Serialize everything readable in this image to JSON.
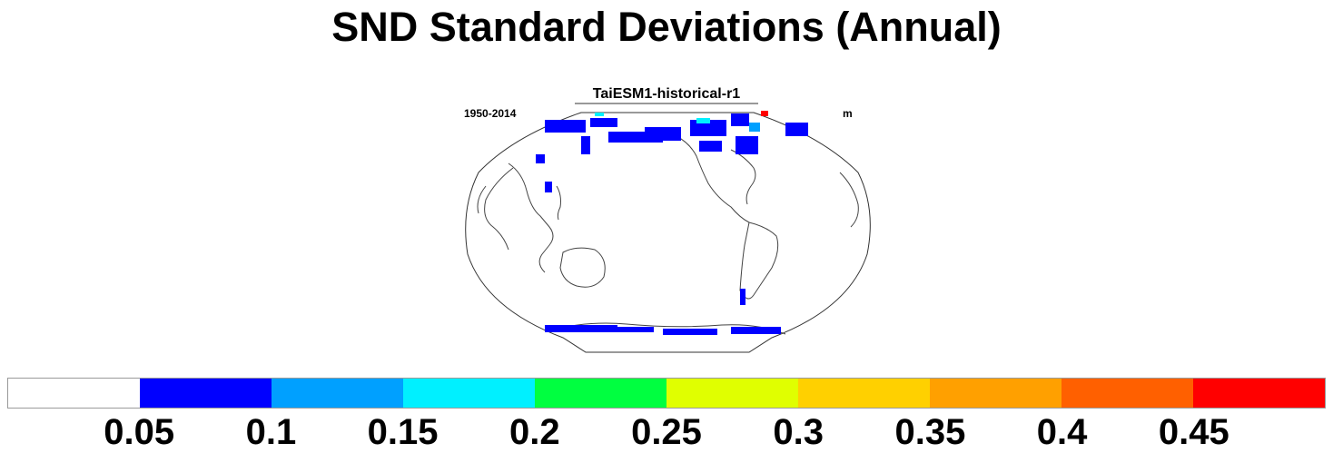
{
  "title": "SND Standard Deviations (Annual)",
  "subtitle": "TaiESM1-historical-r1",
  "left_label": "1950-2014",
  "right_label": "m",
  "colorbar": {
    "colors": [
      "#ffffff",
      "#0000ff",
      "#00a0ff",
      "#00f0ff",
      "#00ff40",
      "#e0ff00",
      "#ffd000",
      "#ffa000",
      "#ff6000",
      "#ff0000"
    ],
    "tick_labels": [
      "0.05",
      "0.1",
      "0.15",
      "0.2",
      "0.25",
      "0.3",
      "0.35",
      "0.4",
      "0.45"
    ]
  }
}
